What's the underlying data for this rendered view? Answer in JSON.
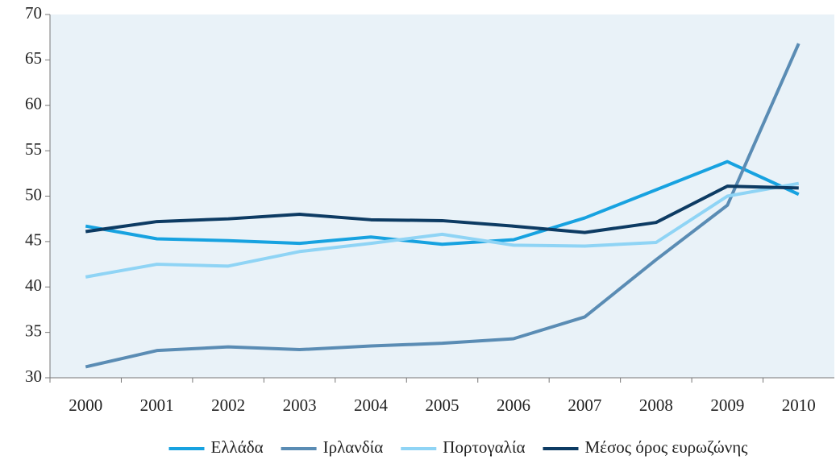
{
  "chart_data": {
    "type": "line",
    "categories": [
      "2000",
      "2001",
      "2002",
      "2003",
      "2004",
      "2005",
      "2006",
      "2007",
      "2008",
      "2009",
      "2010"
    ],
    "series": [
      {
        "name": "Ελλάδα",
        "color": "#17a2e0",
        "values": [
          46.7,
          45.3,
          45.1,
          44.8,
          45.5,
          44.7,
          45.2,
          47.6,
          50.7,
          53.8,
          50.2
        ]
      },
      {
        "name": "Ιρλανδία",
        "color": "#5a8cb4",
        "values": [
          31.2,
          33.0,
          33.4,
          33.1,
          33.5,
          33.8,
          34.3,
          36.7,
          43.0,
          49.0,
          66.8
        ]
      },
      {
        "name": "Πορτογαλία",
        "color": "#8fd4f5",
        "values": [
          41.1,
          42.5,
          42.3,
          43.9,
          44.8,
          45.8,
          44.6,
          44.5,
          44.9,
          50.0,
          51.4
        ]
      },
      {
        "name": "Μέσος όρος ευρωζώνης",
        "color": "#0d3b63",
        "values": [
          46.1,
          47.2,
          47.5,
          48.0,
          47.4,
          47.3,
          46.7,
          46.0,
          47.1,
          51.1,
          50.9
        ]
      }
    ],
    "ylim": [
      30,
      70
    ],
    "yticks": [
      30,
      35,
      40,
      45,
      50,
      55,
      60,
      65,
      70
    ],
    "legend": "bottom"
  }
}
